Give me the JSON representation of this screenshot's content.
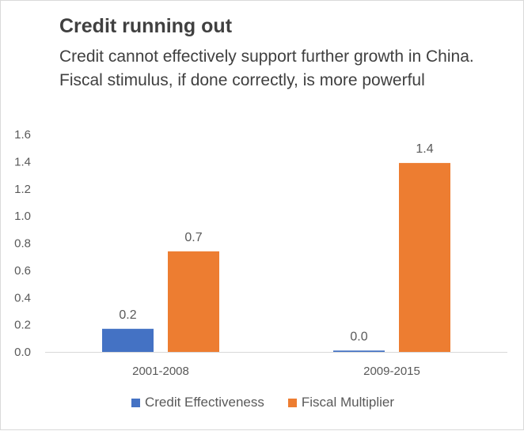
{
  "colors": {
    "credit": "#4472C4",
    "fiscal": "#ED7D31",
    "axis_text": "#595959",
    "title_text": "#404040",
    "axis_line": "#d9d9d9"
  },
  "chart_data": {
    "type": "bar",
    "title": "Credit running out",
    "subtitle": "Credit cannot effectively support further growth in China. Fiscal stimulus, if done correctly, is more powerful",
    "xlabel": "",
    "ylabel": "",
    "ylim": [
      0,
      1.6
    ],
    "yticks": [
      "0.0",
      "0.2",
      "0.4",
      "0.6",
      "0.8",
      "1.0",
      "1.2",
      "1.4",
      "1.6"
    ],
    "categories": [
      "2001-2008",
      "2009-2015"
    ],
    "series": [
      {
        "name": "Credit Effectiveness",
        "values": [
          0.17,
          0.01
        ],
        "labels": [
          "0.2",
          "0.0"
        ]
      },
      {
        "name": "Fiscal Multiplier",
        "values": [
          0.74,
          1.39
        ],
        "labels": [
          "0.7",
          "1.4"
        ]
      }
    ],
    "grid": false,
    "legend_position": "bottom"
  }
}
